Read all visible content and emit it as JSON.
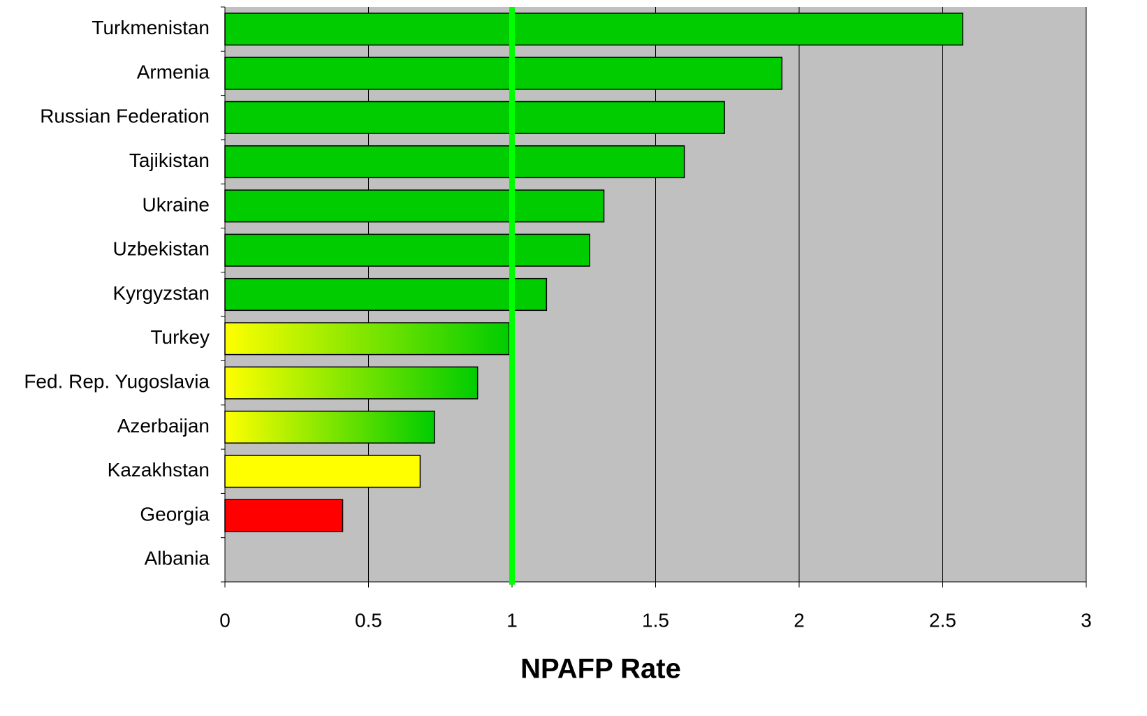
{
  "chart_data": {
    "type": "barh",
    "xlabel": "NPAFP Rate",
    "categories": [
      "Turkmenistan",
      "Armenia",
      "Russian Federation",
      "Tajikistan",
      "Ukraine",
      "Uzbekistan",
      "Kyrgyzstan",
      "Turkey",
      "Fed. Rep. Yugoslavia",
      "Azerbaijan",
      "Kazakhstan",
      "Georgia",
      "Albania"
    ],
    "values": [
      2.57,
      1.94,
      1.74,
      1.6,
      1.32,
      1.27,
      1.12,
      0.99,
      0.88,
      0.73,
      0.68,
      0.41,
      null
    ],
    "colors": [
      [
        "#00cc00"
      ],
      [
        "#00cc00"
      ],
      [
        "#00cc00"
      ],
      [
        "#00cc00"
      ],
      [
        "#00cc00"
      ],
      [
        "#00cc00"
      ],
      [
        "#00cc00"
      ],
      [
        "#ffff00",
        "#00cc00"
      ],
      [
        "#ffff00",
        "#00cc00"
      ],
      [
        "#ffff00",
        "#00cc00"
      ],
      [
        "#ffff00"
      ],
      [
        "#ff0000"
      ],
      [
        "#00cc00"
      ]
    ],
    "xlim": [
      0,
      3
    ],
    "xticks": [
      0,
      0.5,
      1,
      1.5,
      2,
      2.5,
      3
    ],
    "grid": true,
    "reference_line": {
      "value": 1,
      "color": "#00ff00"
    },
    "plot_background": "#c0c0c0"
  }
}
